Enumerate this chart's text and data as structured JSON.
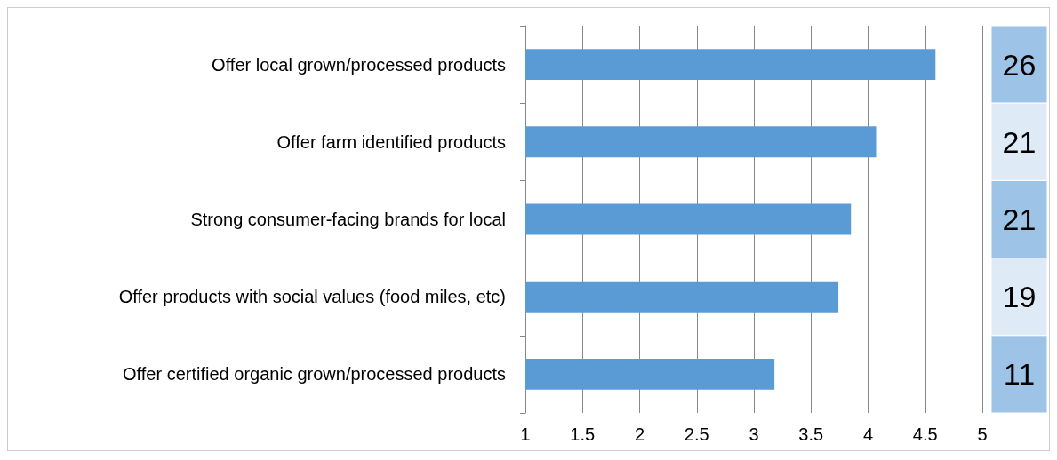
{
  "chart_data": {
    "type": "bar",
    "orientation": "horizontal",
    "categories": [
      "Offer local grown/processed products",
      "Offer farm identified products",
      "Strong consumer-facing brands for local",
      "Offer products with social values (food miles, etc)",
      "Offer certified organic grown/processed products"
    ],
    "values": [
      4.59,
      4.07,
      3.85,
      3.74,
      3.18
    ],
    "color": "#5b9bd5",
    "xlim": [
      1,
      5
    ],
    "xticks": [
      1,
      1.5,
      2,
      2.5,
      3,
      3.5,
      4,
      4.5,
      5
    ],
    "grid": "x",
    "annotations": [
      "26",
      "21",
      "21",
      "19",
      "11"
    ]
  }
}
